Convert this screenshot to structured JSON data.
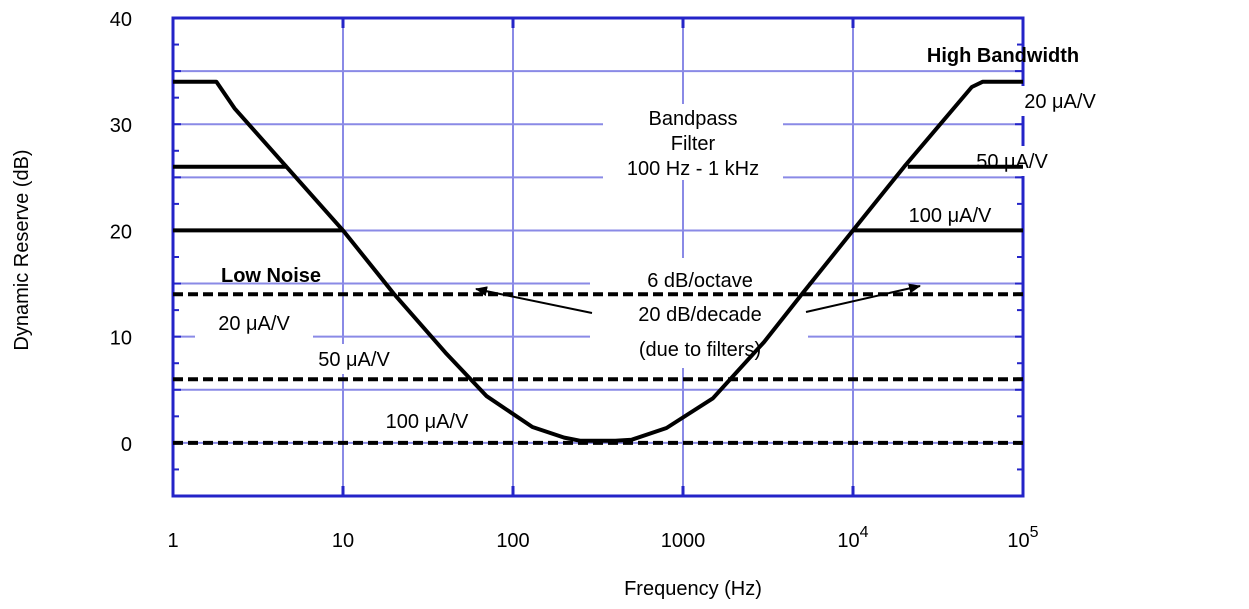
{
  "chart_data": {
    "type": "line",
    "xlabel": "Frequency  (Hz)",
    "ylabel": "Dynamic Reserve  (dB)",
    "x_scale": "log10",
    "xlim": [
      1,
      100000
    ],
    "ylim": [
      -5,
      40
    ],
    "grid": true,
    "x_ticks": [
      {
        "value": 1,
        "label": "1",
        "exp": ""
      },
      {
        "value": 10,
        "label": "10",
        "exp": ""
      },
      {
        "value": 100,
        "label": "100",
        "exp": ""
      },
      {
        "value": 1000,
        "label": "1000",
        "exp": ""
      },
      {
        "value": 10000,
        "label": "10",
        "exp": "4"
      },
      {
        "value": 100000,
        "label": "10",
        "exp": "5"
      }
    ],
    "y_ticks": [
      {
        "value": 0,
        "label": "0"
      },
      {
        "value": 10,
        "label": "10"
      },
      {
        "value": 20,
        "label": "20"
      },
      {
        "value": 30,
        "label": "30"
      },
      {
        "value": 40,
        "label": "40"
      }
    ],
    "series": [
      {
        "style": "solid",
        "x": [
          1,
          1.8,
          2.3,
          10,
          20,
          40,
          70,
          130,
          200,
          250,
          400,
          500,
          800,
          1500,
          3000,
          5000,
          10000,
          20000,
          50000,
          58000,
          100000
        ],
        "y": [
          34,
          34,
          31.5,
          20,
          14,
          8.5,
          4.4,
          1.5,
          0.5,
          0.2,
          0.2,
          0.3,
          1.4,
          4.2,
          9.5,
          14,
          20,
          26,
          33.5,
          34,
          34
        ]
      },
      {
        "style": "solid",
        "x": [
          1,
          4.7
        ],
        "y": [
          26,
          26
        ]
      },
      {
        "style": "solid",
        "x": [
          1,
          10
        ],
        "y": [
          20,
          20
        ]
      },
      {
        "style": "solid",
        "x": [
          21000,
          100000
        ],
        "y": [
          26,
          26
        ]
      },
      {
        "style": "solid",
        "x": [
          10000,
          100000
        ],
        "y": [
          20,
          20
        ]
      },
      {
        "style": "dashed",
        "x": [
          1,
          100000
        ],
        "y": [
          14,
          14
        ]
      },
      {
        "style": "dashed",
        "x": [
          1,
          100000
        ],
        "y": [
          6,
          6
        ]
      },
      {
        "style": "dashed",
        "x": [
          1,
          100000
        ],
        "y": [
          0,
          0
        ]
      }
    ],
    "annotations": {
      "high_bandwidth": "High Bandwidth",
      "low_noise": "Low Noise",
      "bandpass_1": "Bandpass",
      "bandpass_2": "Filter",
      "bandpass_3": "100 Hz - 1 kHz",
      "slope_1": "6 dB/octave",
      "slope_2": "20 dB/decade",
      "slope_3": "(due to filters)",
      "r_20": "20 μA/V",
      "r_50": "50 μA/V",
      "r_100": "100 μA/V",
      "l_20": "20 μA/V",
      "l_50": "50 μA/V",
      "l_100": "100 μA/V"
    },
    "colors": {
      "frame": "#2424c8",
      "grid": "#8a8ae6",
      "curve": "#000000"
    }
  }
}
